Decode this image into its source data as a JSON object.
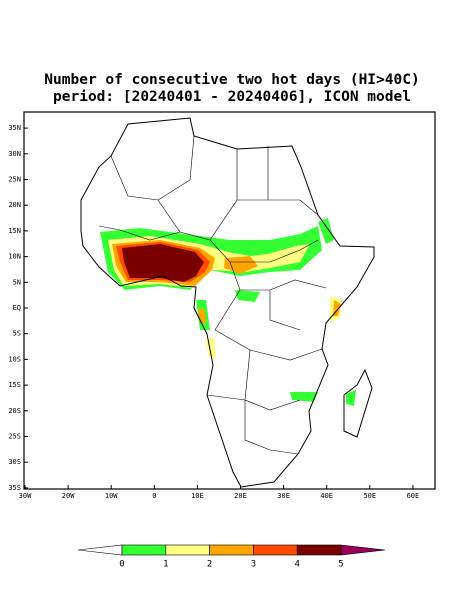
{
  "title": [
    "Number of consecutive two hot days (HI>40C)",
    "period: [20240401 - 20240406], ICON model"
  ],
  "lat_ticks": [
    {
      "value": 35,
      "label": "35N"
    },
    {
      "value": 30,
      "label": "30N"
    },
    {
      "value": 25,
      "label": "25N"
    },
    {
      "value": 20,
      "label": "20N"
    },
    {
      "value": 15,
      "label": "15N"
    },
    {
      "value": 10,
      "label": "10N"
    },
    {
      "value": 5,
      "label": "5N"
    },
    {
      "value": 0,
      "label": "EQ"
    },
    {
      "value": -5,
      "label": "5S"
    },
    {
      "value": -10,
      "label": "10S"
    },
    {
      "value": -15,
      "label": "15S"
    },
    {
      "value": -20,
      "label": "20S"
    },
    {
      "value": -25,
      "label": "25S"
    },
    {
      "value": -30,
      "label": "30S"
    },
    {
      "value": -35,
      "label": "35S"
    }
  ],
  "lon_ticks": [
    {
      "value": -30,
      "label": "30W"
    },
    {
      "value": -20,
      "label": "20W"
    },
    {
      "value": -10,
      "label": "10W"
    },
    0,
    {
      "value": 10,
      "label": "10E"
    },
    {
      "value": 20,
      "label": "20E"
    },
    {
      "value": 30,
      "label": "30E"
    },
    {
      "value": 40,
      "label": "40E"
    },
    {
      "value": 50,
      "label": "50E"
    },
    {
      "value": 60,
      "label": "60E"
    }
  ],
  "colorbar": {
    "levels": [
      0,
      1,
      2,
      3,
      4,
      5
    ],
    "colors": [
      "#ffffff",
      "#33ff33",
      "#ffff80",
      "#ffa500",
      "#ff4a00",
      "#7a0000",
      "#99005c"
    ]
  }
}
